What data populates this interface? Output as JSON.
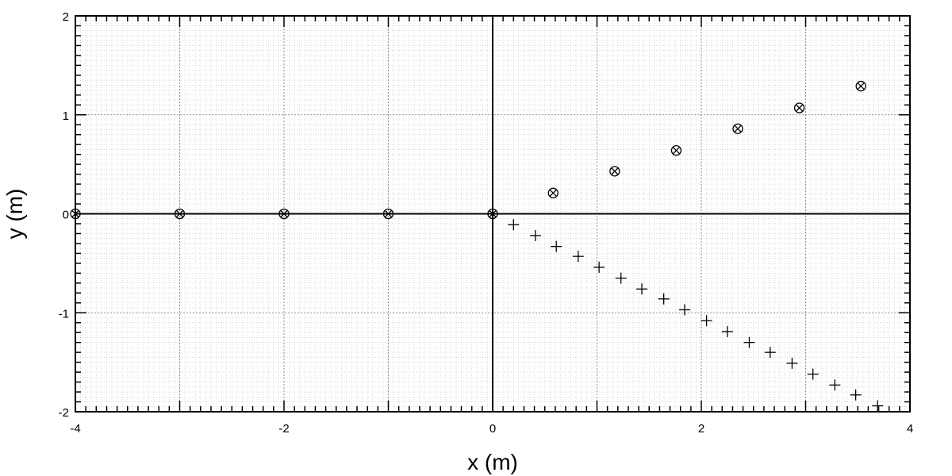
{
  "chart_data": {
    "type": "scatter",
    "title": "",
    "xlabel": "x (m)",
    "ylabel": "y (m)",
    "xlim": [
      -4,
      4
    ],
    "ylim": [
      -2,
      2
    ],
    "x_ticks": [
      -4,
      -2,
      0,
      2,
      4
    ],
    "y_ticks": [
      -2,
      -1,
      0,
      1,
      2
    ],
    "x_tick_labels": [
      "-4",
      "-2",
      "0",
      "2",
      "4"
    ],
    "y_tick_labels": [
      "-2",
      "-1",
      "0",
      "1",
      "2"
    ],
    "grid": true,
    "legend": "none",
    "series": [
      {
        "marker": "circled-x",
        "x": [
          -4,
          -3,
          -2,
          -1,
          0,
          0.58,
          1.17,
          1.76,
          2.35,
          2.94,
          3.53
        ],
        "y": [
          0,
          0,
          0,
          0,
          0,
          0.21,
          0.43,
          0.64,
          0.86,
          1.07,
          1.29
        ]
      },
      {
        "marker": "plus",
        "x": [
          0.2,
          0.41,
          0.61,
          0.82,
          1.02,
          1.23,
          1.43,
          1.64,
          1.84,
          2.05,
          2.25,
          2.46,
          2.66,
          2.87,
          3.07,
          3.28,
          3.48,
          3.69
        ],
        "y": [
          -0.11,
          -0.22,
          -0.33,
          -0.43,
          -0.54,
          -0.65,
          -0.76,
          -0.86,
          -0.97,
          -1.08,
          -1.19,
          -1.3,
          -1.4,
          -1.51,
          -1.62,
          -1.73,
          -1.83,
          -1.94
        ]
      }
    ]
  }
}
